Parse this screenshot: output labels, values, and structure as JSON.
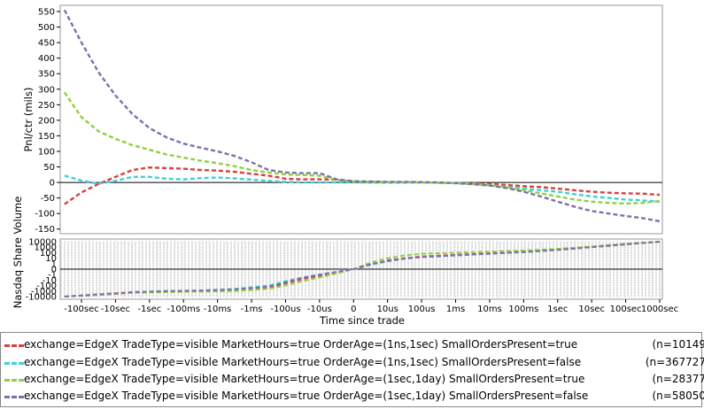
{
  "chart_data": [
    {
      "type": "line",
      "ylabel": "Pnl/ctr (mils)",
      "xlabel": "",
      "ylim": [
        -165,
        570
      ],
      "yticks": [
        -150,
        -100,
        -50,
        0,
        50,
        100,
        150,
        200,
        250,
        300,
        350,
        400,
        450,
        500,
        550
      ],
      "x": [
        -0.5,
        0,
        0.5,
        1,
        1.5,
        2,
        2.5,
        3,
        3.5,
        4,
        4.5,
        5,
        5.5,
        6,
        6.5,
        7,
        7.5,
        8,
        8.5,
        9,
        9.5,
        10,
        10.5,
        11,
        11.5,
        12,
        12.5,
        13,
        13.5,
        14,
        14.5,
        15,
        15.5,
        16,
        16.5,
        17
      ],
      "series": [
        {
          "color": "#d94040",
          "values": [
            -70,
            -32,
            -5,
            18,
            40,
            48,
            46,
            44,
            40,
            38,
            34,
            28,
            22,
            12,
            10,
            10,
            9,
            2,
            2,
            1,
            1,
            0,
            -1,
            -2,
            -3,
            -5,
            -8,
            -12,
            -15,
            -20,
            -25,
            -30,
            -33,
            -35,
            -36,
            -40
          ]
        },
        {
          "color": "#40d0d8",
          "values": [
            22,
            6,
            -4,
            5,
            18,
            18,
            12,
            10,
            14,
            16,
            13,
            9,
            5,
            2,
            0,
            0,
            0,
            0,
            -1,
            -1,
            -1,
            0,
            -1,
            -3,
            -6,
            -10,
            -15,
            -20,
            -25,
            -30,
            -38,
            -45,
            -50,
            -55,
            -58,
            -62
          ]
        },
        {
          "color": "#90d040",
          "values": [
            290,
            210,
            165,
            140,
            120,
            105,
            90,
            80,
            70,
            62,
            52,
            40,
            32,
            26,
            24,
            22,
            8,
            3,
            2,
            1,
            1,
            0,
            -1,
            -2,
            -4,
            -8,
            -15,
            -25,
            -35,
            -45,
            -55,
            -62,
            -66,
            -68,
            -66,
            -60
          ]
        },
        {
          "color": "#8070a8",
          "values": [
            555,
            450,
            355,
            280,
            220,
            175,
            145,
            125,
            112,
            100,
            85,
            65,
            40,
            32,
            30,
            30,
            10,
            4,
            3,
            2,
            2,
            1,
            0,
            -2,
            -5,
            -10,
            -18,
            -30,
            -45,
            -62,
            -78,
            -92,
            -100,
            -108,
            -115,
            -125
          ]
        }
      ]
    },
    {
      "type": "line",
      "ylabel": "Nasdaq Share Volume",
      "xlabel": "Time since trade",
      "yticks": [
        "10000",
        "1000",
        "100",
        "10",
        "1",
        "0",
        "-1",
        "-10",
        "-100",
        "-1000",
        "-10000"
      ],
      "xticks": [
        "-100sec",
        "-10sec",
        "-1sec",
        "-100ms",
        "-10ms",
        "-1ms",
        "-100us",
        "-10us",
        "0",
        "10us",
        "100us",
        "1ms",
        "10ms",
        "100ms",
        "1sec",
        "10sec",
        "100sec",
        "1000sec"
      ],
      "x": [
        -0.5,
        0.5,
        1.5,
        2.5,
        3.5,
        4.5,
        5.5,
        6,
        6.5,
        7,
        7.5,
        8,
        8.5,
        9,
        9.5,
        10,
        11,
        12,
        13,
        14,
        15,
        16,
        17
      ],
      "series": [
        {
          "color": "#d94040",
          "values": [
            -5,
            -4.7,
            -4.3,
            -4.1,
            -4.0,
            -3.8,
            -3.4,
            -2.6,
            -1.8,
            -1.2,
            -0.6,
            0,
            0.8,
            1.6,
            2.0,
            2.3,
            2.6,
            2.9,
            3.2,
            3.6,
            4.1,
            4.6,
            5
          ]
        },
        {
          "color": "#40d0d8",
          "values": [
            -5,
            -4.7,
            -4.2,
            -4.0,
            -3.9,
            -3.6,
            -3.0,
            -2.2,
            -1.5,
            -1.0,
            -0.5,
            0,
            0.8,
            1.4,
            1.9,
            2.2,
            2.5,
            2.8,
            3.1,
            3.5,
            4.0,
            4.5,
            5
          ]
        },
        {
          "color": "#90d040",
          "values": [
            -5,
            -4.6,
            -4.3,
            -4.2,
            -4.1,
            -4.0,
            -3.6,
            -3.0,
            -2.2,
            -1.5,
            -0.8,
            0,
            1.2,
            2.0,
            2.5,
            2.8,
            3.0,
            3.2,
            3.4,
            3.7,
            4.1,
            4.6,
            5
          ]
        },
        {
          "color": "#8070a8",
          "values": [
            -5,
            -4.6,
            -4.2,
            -4.0,
            -3.9,
            -3.7,
            -3.2,
            -2.4,
            -1.6,
            -1.0,
            -0.5,
            0,
            0.9,
            1.5,
            1.9,
            2.2,
            2.5,
            2.8,
            3.1,
            3.5,
            4.0,
            4.5,
            5
          ]
        }
      ]
    }
  ],
  "legend": [
    {
      "color": "#d94040",
      "label": "exchange=EdgeX TradeType=visible MarketHours=true OrderAge=(1ns,1sec) SmallOrdersPresent=true",
      "n": "(n=10149"
    },
    {
      "color": "#40d0d8",
      "label": "exchange=EdgeX TradeType=visible MarketHours=true OrderAge=(1ns,1sec) SmallOrdersPresent=false",
      "n": "(n=367727"
    },
    {
      "color": "#90d040",
      "label": "exchange=EdgeX TradeType=visible MarketHours=true OrderAge=(1sec,1day) SmallOrdersPresent=true",
      "n": "(n=28377"
    },
    {
      "color": "#8070a8",
      "label": "exchange=EdgeX TradeType=visible MarketHours=true OrderAge=(1sec,1day) SmallOrdersPresent=false",
      "n": "(n=58050"
    }
  ]
}
